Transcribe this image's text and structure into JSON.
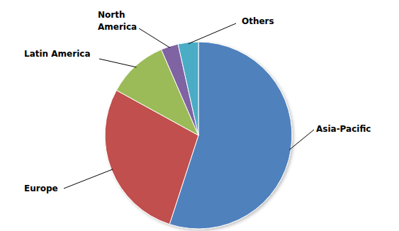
{
  "chart_data": {
    "type": "pie",
    "categories": [
      "Asia-Pacific",
      "Europe",
      "Latin America",
      "North America",
      "Others"
    ],
    "values": [
      55,
      28,
      10.5,
      3,
      3.5
    ],
    "colors": [
      "#4f81bd",
      "#c0504d",
      "#9bbb59",
      "#8064a2",
      "#4bacc6"
    ]
  }
}
